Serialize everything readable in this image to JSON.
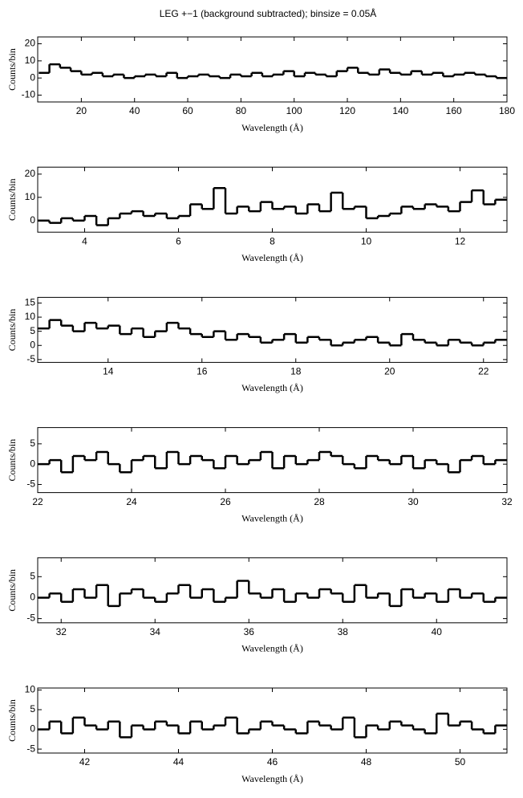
{
  "chart_data": [
    {
      "type": "step",
      "title": "LEG +−1 (background subtracted); binsize = 0.05Å",
      "x_label": "Wavelength (Å)",
      "y_label": "Counts/bin",
      "xlim": [
        3.6,
        180
      ],
      "ylim": [
        -14,
        24
      ],
      "xticks": [
        20,
        40,
        60,
        80,
        100,
        120,
        140,
        160,
        180
      ],
      "yticks": [
        -10,
        0,
        10,
        20
      ],
      "series": [
        {
          "name": "LEG +-1",
          "color": "#000000",
          "x": [
            4,
            8,
            12,
            16,
            20,
            24,
            28,
            32,
            36,
            40,
            44,
            48,
            52,
            56,
            60,
            64,
            68,
            72,
            76,
            80,
            84,
            88,
            92,
            96,
            100,
            104,
            108,
            112,
            116,
            120,
            124,
            128,
            132,
            136,
            140,
            144,
            148,
            152,
            156,
            160,
            164,
            168,
            172,
            176
          ],
          "values": [
            3,
            8,
            6,
            4,
            2,
            3,
            1,
            2,
            0,
            1,
            2,
            1,
            3,
            0,
            1,
            2,
            1,
            0,
            2,
            1,
            3,
            1,
            2,
            4,
            1,
            3,
            2,
            1,
            4,
            6,
            3,
            2,
            5,
            3,
            2,
            4,
            2,
            3,
            1,
            2,
            3,
            2,
            1,
            0
          ]
        }
      ]
    },
    {
      "type": "step",
      "x_label": "Wavelength (Å)",
      "y_label": "Counts/bin",
      "xlim": [
        3,
        13
      ],
      "ylim": [
        -5,
        23
      ],
      "xticks": [
        4,
        6,
        8,
        10,
        12
      ],
      "yticks": [
        0,
        10,
        20
      ],
      "series": [
        {
          "name": "LEG +-1",
          "color": "#000000",
          "x": [
            3,
            3.25,
            3.5,
            3.75,
            4,
            4.25,
            4.5,
            4.75,
            5,
            5.25,
            5.5,
            5.75,
            6,
            6.25,
            6.5,
            6.75,
            7,
            7.25,
            7.5,
            7.75,
            8,
            8.25,
            8.5,
            8.75,
            9,
            9.25,
            9.5,
            9.75,
            10,
            10.25,
            10.5,
            10.75,
            11,
            11.25,
            11.5,
            11.75,
            12,
            12.25,
            12.5,
            12.75
          ],
          "values": [
            0,
            -1,
            1,
            0,
            2,
            -2,
            1,
            3,
            4,
            2,
            3,
            1,
            2,
            7,
            5,
            14,
            3,
            6,
            4,
            8,
            5,
            6,
            3,
            7,
            4,
            12,
            5,
            6,
            1,
            2,
            3,
            6,
            5,
            7,
            6,
            4,
            8,
            13,
            7,
            9
          ]
        }
      ]
    },
    {
      "type": "step",
      "x_label": "Wavelength (Å)",
      "y_label": "Counts/bin",
      "xlim": [
        12.5,
        22.5
      ],
      "ylim": [
        -6,
        17
      ],
      "xticks": [
        14,
        16,
        18,
        20,
        22
      ],
      "yticks": [
        -5,
        0,
        5,
        10,
        15
      ],
      "series": [
        {
          "name": "LEG +-1",
          "color": "#000000",
          "x": [
            12.5,
            12.75,
            13,
            13.25,
            13.5,
            13.75,
            14,
            14.25,
            14.5,
            14.75,
            15,
            15.25,
            15.5,
            15.75,
            16,
            16.25,
            16.5,
            16.75,
            17,
            17.25,
            17.5,
            17.75,
            18,
            18.25,
            18.5,
            18.75,
            19,
            19.25,
            19.5,
            19.75,
            20,
            20.25,
            20.5,
            20.75,
            21,
            21.25,
            21.5,
            21.75,
            22,
            22.25
          ],
          "values": [
            6,
            9,
            7,
            5,
            8,
            6,
            7,
            4,
            6,
            3,
            5,
            8,
            6,
            4,
            3,
            5,
            2,
            4,
            3,
            1,
            2,
            4,
            1,
            3,
            2,
            0,
            1,
            2,
            3,
            1,
            0,
            4,
            2,
            1,
            0,
            2,
            1,
            0,
            1,
            2
          ]
        }
      ]
    },
    {
      "type": "step",
      "x_label": "Wavelength (Å)",
      "y_label": "Counts/bin",
      "xlim": [
        22,
        32
      ],
      "ylim": [
        -7,
        9
      ],
      "xticks": [
        22,
        24,
        26,
        28,
        30,
        32
      ],
      "yticks": [
        -5,
        0,
        5
      ],
      "series": [
        {
          "name": "LEG +-1",
          "color": "#000000",
          "x": [
            22,
            22.25,
            22.5,
            22.75,
            23,
            23.25,
            23.5,
            23.75,
            24,
            24.25,
            24.5,
            24.75,
            25,
            25.25,
            25.5,
            25.75,
            26,
            26.25,
            26.5,
            26.75,
            27,
            27.25,
            27.5,
            27.75,
            28,
            28.25,
            28.5,
            28.75,
            29,
            29.25,
            29.5,
            29.75,
            30,
            30.25,
            30.5,
            30.75,
            31,
            31.25,
            31.5,
            31.75
          ],
          "values": [
            0,
            1,
            -2,
            2,
            1,
            3,
            0,
            -2,
            1,
            2,
            -1,
            3,
            0,
            2,
            1,
            -1,
            2,
            0,
            1,
            3,
            -1,
            2,
            0,
            1,
            3,
            2,
            0,
            -1,
            2,
            1,
            0,
            2,
            -1,
            1,
            0,
            -2,
            1,
            2,
            0,
            1
          ]
        }
      ]
    },
    {
      "type": "step",
      "x_label": "Wavelength (Å)",
      "y_label": "Counts/bin",
      "xlim": [
        31.5,
        41.5
      ],
      "ylim": [
        -6,
        9.5
      ],
      "xticks": [
        32,
        34,
        36,
        38,
        40
      ],
      "yticks": [
        -5,
        0,
        5
      ],
      "series": [
        {
          "name": "LEG +-1",
          "color": "#000000",
          "x": [
            31.5,
            31.75,
            32,
            32.25,
            32.5,
            32.75,
            33,
            33.25,
            33.5,
            33.75,
            34,
            34.25,
            34.5,
            34.75,
            35,
            35.25,
            35.5,
            35.75,
            36,
            36.25,
            36.5,
            36.75,
            37,
            37.25,
            37.5,
            37.75,
            38,
            38.25,
            38.5,
            38.75,
            39,
            39.25,
            39.5,
            39.75,
            40,
            40.25,
            40.5,
            40.75,
            41,
            41.25
          ],
          "values": [
            0,
            1,
            -1,
            2,
            0,
            3,
            -2,
            1,
            2,
            0,
            -1,
            1,
            3,
            0,
            2,
            -1,
            0,
            4,
            1,
            0,
            2,
            -1,
            1,
            0,
            2,
            1,
            -1,
            3,
            0,
            1,
            -2,
            2,
            0,
            1,
            -1,
            2,
            0,
            1,
            -1,
            0
          ]
        }
      ]
    },
    {
      "type": "step",
      "x_label": "Wavelength (Å)",
      "y_label": "Counts/bin",
      "xlim": [
        41,
        51
      ],
      "ylim": [
        -6,
        10.5
      ],
      "xticks": [
        42,
        44,
        46,
        48,
        50
      ],
      "yticks": [
        -5,
        0,
        5,
        10
      ],
      "series": [
        {
          "name": "LEG +-1",
          "color": "#000000",
          "x": [
            41,
            41.25,
            41.5,
            41.75,
            42,
            42.25,
            42.5,
            42.75,
            43,
            43.25,
            43.5,
            43.75,
            44,
            44.25,
            44.5,
            44.75,
            45,
            45.25,
            45.5,
            45.75,
            46,
            46.25,
            46.5,
            46.75,
            47,
            47.25,
            47.5,
            47.75,
            48,
            48.25,
            48.5,
            48.75,
            49,
            49.25,
            49.5,
            49.75,
            50,
            50.25,
            50.5,
            50.75
          ],
          "values": [
            0,
            2,
            -1,
            3,
            1,
            0,
            2,
            -2,
            1,
            0,
            2,
            1,
            -1,
            2,
            0,
            1,
            3,
            -1,
            0,
            2,
            1,
            0,
            -1,
            2,
            1,
            0,
            3,
            -2,
            1,
            0,
            2,
            1,
            0,
            -1,
            4,
            1,
            2,
            0,
            -1,
            1
          ]
        }
      ]
    }
  ]
}
